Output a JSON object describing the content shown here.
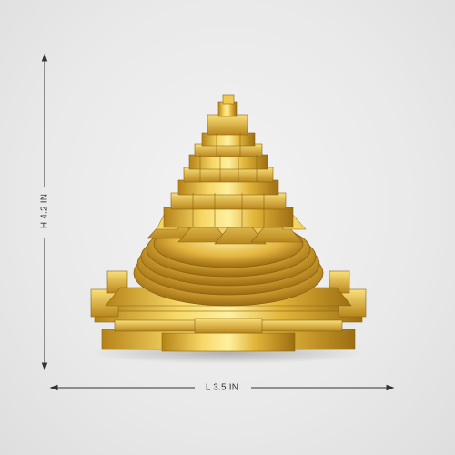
{
  "product": {
    "name_icon": "shree-yantra-pyramid",
    "metal_color": "#d8ac2c",
    "highlight_color": "#fff3a8",
    "shadow_color": "#8a6410"
  },
  "dimensions": {
    "height_label": "H 4.2 IN",
    "length_label": "L 3.5 IN"
  }
}
